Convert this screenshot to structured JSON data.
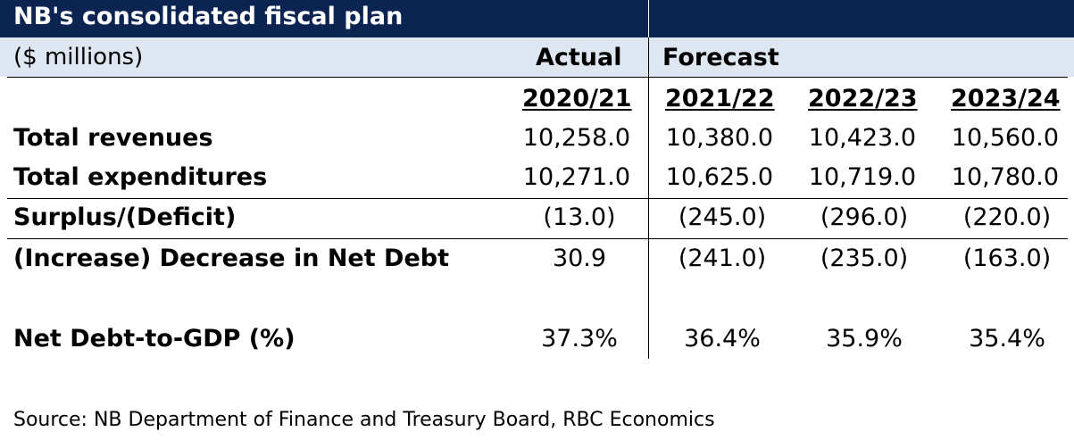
{
  "title": "NB's consolidated fiscal plan",
  "subtitle": "($ millions)",
  "group_labels": {
    "actual": "Actual",
    "forecast": "Forecast"
  },
  "columns": [
    "2020/21",
    "2021/22",
    "2022/23",
    "2023/24"
  ],
  "rows": [
    {
      "label": "Total revenues",
      "values": [
        "10,258.0",
        "10,380.0",
        "10,423.0",
        "10,560.0"
      ]
    },
    {
      "label": "Total expenditures",
      "values": [
        "10,271.0",
        "10,625.0",
        "10,719.0",
        "10,780.0"
      ]
    },
    {
      "label": "Surplus/(Deficit)",
      "values": [
        "(13.0)",
        "(245.0)",
        "(296.0)",
        "(220.0)"
      ]
    },
    {
      "label": "(Increase) Decrease in Net Debt",
      "values": [
        "30.9",
        "(241.0)",
        "(235.0)",
        "(163.0)"
      ]
    },
    {
      "label": "Net Debt-to-GDP (%)",
      "values": [
        "37.3%",
        "36.4%",
        "35.9%",
        "35.4%"
      ]
    }
  ],
  "source": "Source: NB Department of Finance and Treasury Board, RBC Economics",
  "colors": {
    "title_bg": "#0c2451",
    "header_bg": "#dde6f1"
  }
}
